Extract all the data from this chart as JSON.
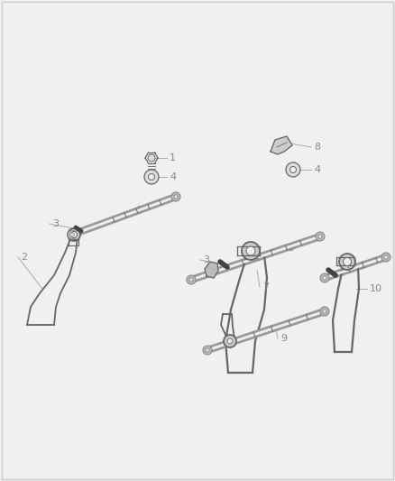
{
  "background_color": "#f0f0f0",
  "line_color": "#666666",
  "label_color": "#888888",
  "fig_width": 4.38,
  "fig_height": 5.33,
  "dpi": 100,
  "border_color": "#cccccc"
}
